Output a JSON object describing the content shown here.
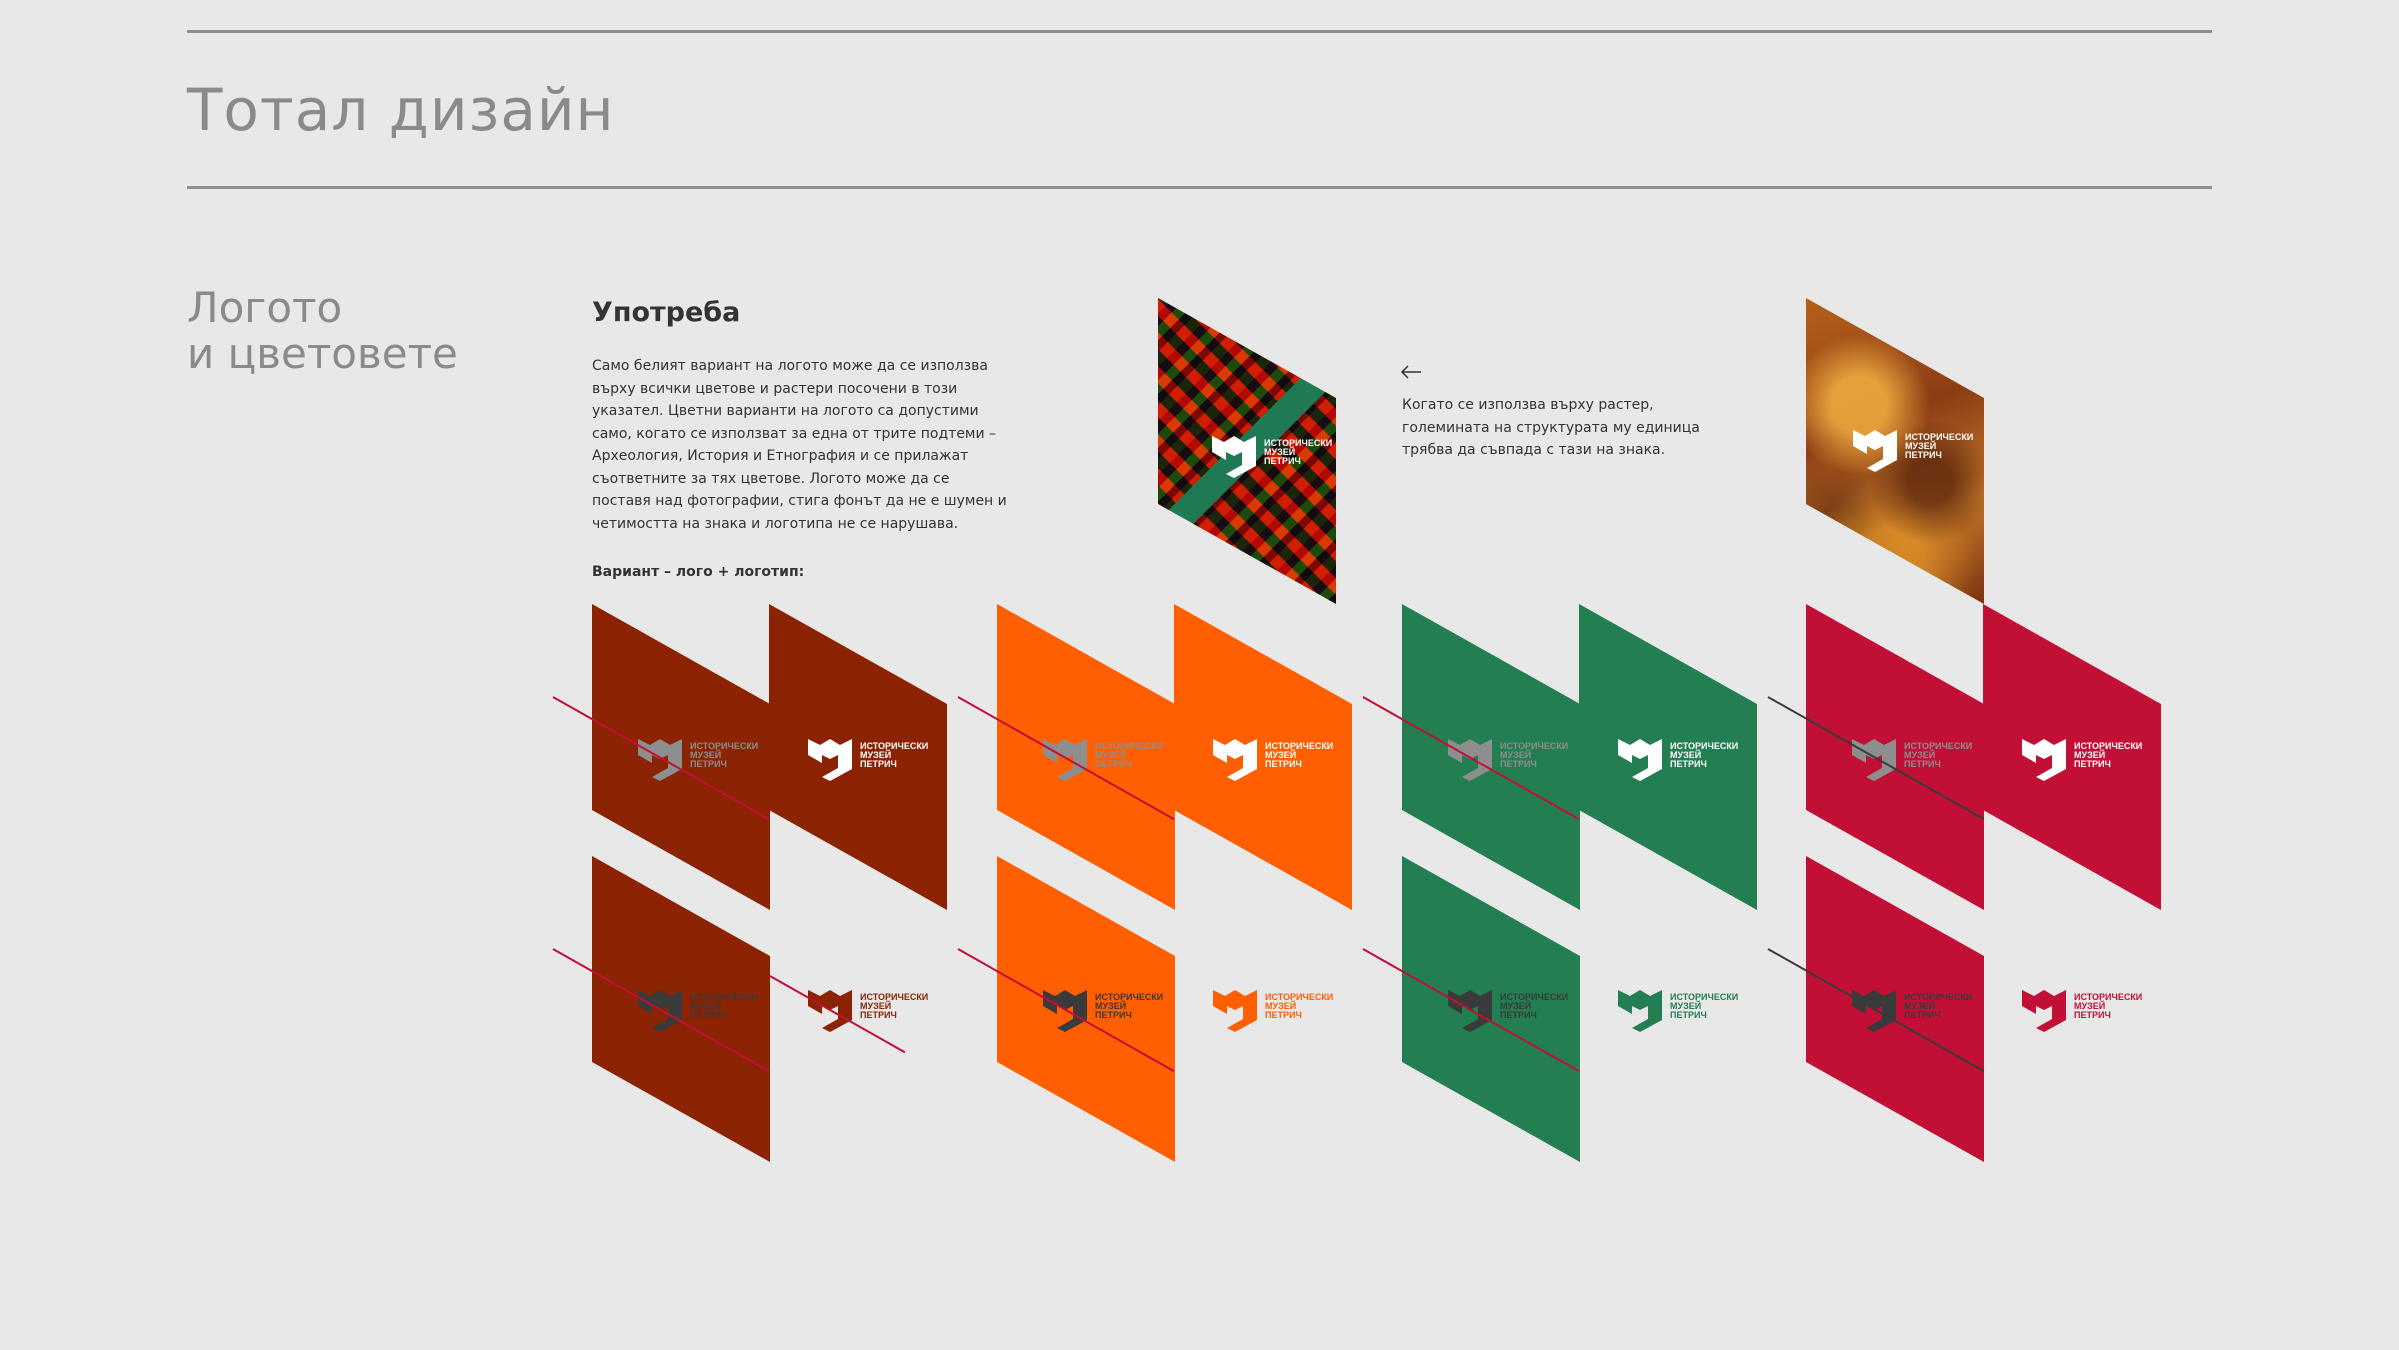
{
  "page": {
    "title": "Тотал дизайн",
    "section_title_line1": "Логото",
    "section_title_line2": "и цветовете"
  },
  "usage": {
    "heading": "Употреба",
    "text": "Само белият вариант на логото може да се използва върху всички цветове и растери посочени в този указател. Цветни варианти на логото са допустими само, когато се използват за една от трите подтеми – Археология, История и Етнография и се прилажат съответните за тях цветове. Логото може да се поставя над фотографии, стига фонът да не е шумен и четимостта на знака и логотипа не се нарушава.",
    "variant_label": "Вариант – лого + логотип:"
  },
  "raster_note": {
    "text": "Когато се използва върху растер, големината на структурата му единица трябва да съвпада с тази на знака."
  },
  "logo_text": {
    "line1": "ИСТОРИЧЕСКИ",
    "line2": "МУЗЕЙ",
    "line3": "ПЕТРИЧ"
  },
  "icons": {
    "arrow": "arrow-left-icon",
    "logo_mark": "museum-logo-mark-icon"
  },
  "colors": {
    "brick": "#8b2303",
    "orange": "#ff5f00",
    "green": "#237e52",
    "crimson": "#c10f35",
    "strike_red": "#c10f35",
    "strike_dark": "#3a3a3a",
    "logo_gray": "#8e8e8e",
    "logo_dark": "#3a3a3a",
    "logo_white": "#ffffff"
  }
}
